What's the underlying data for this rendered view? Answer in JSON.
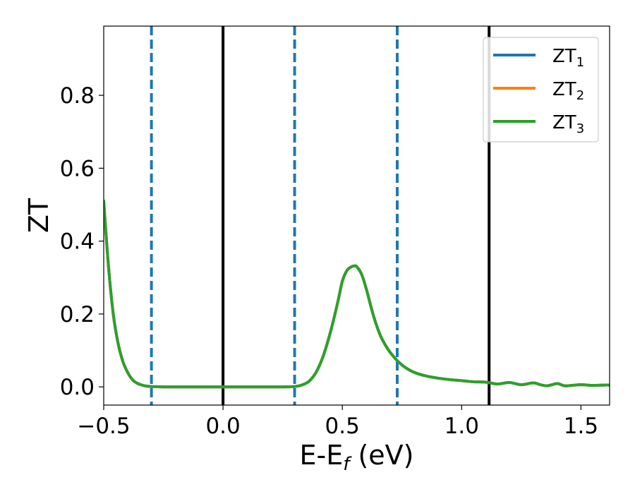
{
  "chart_data": {
    "type": "line",
    "xlabel_main": "E-E",
    "xlabel_sub": "f",
    "xlabel_tail": " (eV)",
    "ylabel": "ZT",
    "xlim": [
      -0.5,
      1.62
    ],
    "ylim": [
      -0.05,
      0.99
    ],
    "xticks": [
      -0.5,
      0.0,
      0.5,
      1.0,
      1.5
    ],
    "xtick_labels": [
      "−0.5",
      "0.0",
      "0.5",
      "1.0",
      "1.5"
    ],
    "yticks": [
      0.0,
      0.2,
      0.4,
      0.6,
      0.8
    ],
    "ytick_labels": [
      "0.0",
      "0.2",
      "0.4",
      "0.6",
      "0.8"
    ],
    "grid": false,
    "legend_position": "top-right",
    "series": [
      {
        "name": "ZT",
        "sub": "1",
        "color": "#1f77b4"
      },
      {
        "name": "ZT",
        "sub": "2",
        "color": "#ff7f0e"
      },
      {
        "name": "ZT",
        "sub": "3",
        "color": "#2ca02c"
      }
    ],
    "curve": {
      "x": [
        -0.5,
        -0.48,
        -0.46,
        -0.44,
        -0.42,
        -0.4,
        -0.38,
        -0.36,
        -0.34,
        -0.32,
        -0.3,
        -0.25,
        -0.2,
        -0.1,
        0.0,
        0.1,
        0.2,
        0.26,
        0.3,
        0.33,
        0.36,
        0.39,
        0.42,
        0.45,
        0.48,
        0.5,
        0.52,
        0.54,
        0.55,
        0.56,
        0.58,
        0.6,
        0.62,
        0.64,
        0.66,
        0.68,
        0.7,
        0.73,
        0.76,
        0.8,
        0.85,
        0.9,
        0.95,
        1.0,
        1.05,
        1.1,
        1.15,
        1.2,
        1.25,
        1.3,
        1.33,
        1.36,
        1.4,
        1.43,
        1.46,
        1.5,
        1.55,
        1.6,
        1.62
      ],
      "y": [
        0.51,
        0.33,
        0.2,
        0.12,
        0.07,
        0.04,
        0.02,
        0.01,
        0.005,
        0.002,
        0.001,
        0.0,
        0.0,
        0.0,
        0.0,
        0.0,
        0.0,
        0.0,
        0.001,
        0.005,
        0.015,
        0.04,
        0.085,
        0.15,
        0.23,
        0.29,
        0.32,
        0.33,
        0.332,
        0.33,
        0.31,
        0.27,
        0.22,
        0.175,
        0.14,
        0.115,
        0.095,
        0.072,
        0.055,
        0.04,
        0.03,
        0.024,
        0.02,
        0.017,
        0.014,
        0.013,
        0.008,
        0.012,
        0.006,
        0.011,
        0.006,
        0.003,
        0.009,
        0.003,
        0.004,
        0.006,
        0.004,
        0.005,
        0.005
      ]
    },
    "vlines_solid": [
      0.0,
      1.115
    ],
    "vlines_dashed": [
      -0.3,
      0.3,
      0.73
    ],
    "vline_solid_color": "#000000",
    "vline_dashed_color": "#1f77b4"
  }
}
